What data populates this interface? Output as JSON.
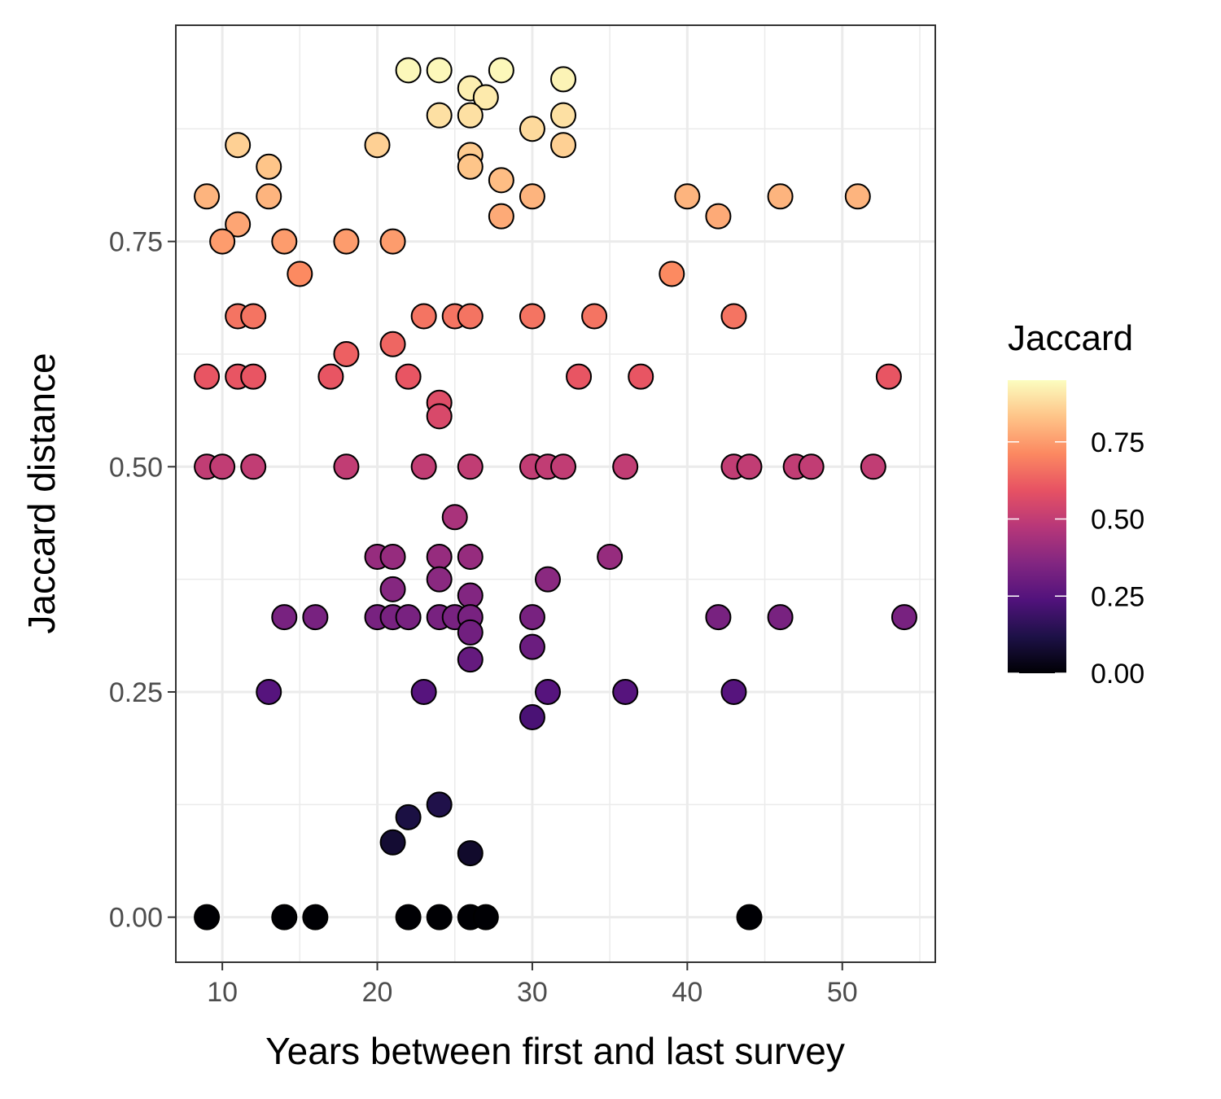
{
  "chart_data": {
    "type": "scatter",
    "xlabel": "Years between first and last survey",
    "ylabel": "Jaccard distance",
    "xlim": [
      7,
      56
    ],
    "ylim": [
      -0.05,
      0.99
    ],
    "x_ticks": [
      10,
      20,
      30,
      40,
      50
    ],
    "x_tick_labels": [
      "10",
      "20",
      "30",
      "40",
      "50"
    ],
    "y_ticks": [
      0,
      0.25,
      0.5,
      0.75
    ],
    "y_tick_labels": [
      "0.00",
      "0.25",
      "0.50",
      "0.75"
    ],
    "grid": true,
    "color_scale": {
      "title": "Jaccard",
      "palette": "magma",
      "range": [
        0,
        0.95
      ],
      "ticks": [
        0,
        0.25,
        0.5,
        0.75
      ],
      "tick_labels": [
        "0.00",
        "0.25",
        "0.50",
        "0.75"
      ],
      "colors": [
        "#000004",
        "#1d1147",
        "#51127c",
        "#822681",
        "#b73779",
        "#e75263",
        "#fc8961",
        "#fec488",
        "#fcfdbf"
      ]
    },
    "legend_position": "right",
    "points": [
      {
        "x": 22,
        "y": 0.94
      },
      {
        "x": 24,
        "y": 0.94
      },
      {
        "x": 28,
        "y": 0.94
      },
      {
        "x": 32,
        "y": 0.93
      },
      {
        "x": 26,
        "y": 0.92
      },
      {
        "x": 27,
        "y": 0.91
      },
      {
        "x": 24,
        "y": 0.89
      },
      {
        "x": 26,
        "y": 0.89
      },
      {
        "x": 32,
        "y": 0.89
      },
      {
        "x": 30,
        "y": 0.875
      },
      {
        "x": 11,
        "y": 0.857
      },
      {
        "x": 20,
        "y": 0.857
      },
      {
        "x": 32,
        "y": 0.857
      },
      {
        "x": 26,
        "y": 0.846
      },
      {
        "x": 26,
        "y": 0.833
      },
      {
        "x": 13,
        "y": 0.833
      },
      {
        "x": 28,
        "y": 0.818
      },
      {
        "x": 9,
        "y": 0.8
      },
      {
        "x": 13,
        "y": 0.8
      },
      {
        "x": 30,
        "y": 0.8
      },
      {
        "x": 40,
        "y": 0.8
      },
      {
        "x": 46,
        "y": 0.8
      },
      {
        "x": 51,
        "y": 0.8
      },
      {
        "x": 28,
        "y": 0.778
      },
      {
        "x": 42,
        "y": 0.778
      },
      {
        "x": 11,
        "y": 0.769
      },
      {
        "x": 10,
        "y": 0.75
      },
      {
        "x": 14,
        "y": 0.75
      },
      {
        "x": 18,
        "y": 0.75
      },
      {
        "x": 21,
        "y": 0.75
      },
      {
        "x": 15,
        "y": 0.714
      },
      {
        "x": 39,
        "y": 0.714
      },
      {
        "x": 11,
        "y": 0.667
      },
      {
        "x": 12,
        "y": 0.667
      },
      {
        "x": 23,
        "y": 0.667
      },
      {
        "x": 25,
        "y": 0.667
      },
      {
        "x": 26,
        "y": 0.667
      },
      {
        "x": 30,
        "y": 0.667
      },
      {
        "x": 34,
        "y": 0.667
      },
      {
        "x": 43,
        "y": 0.667
      },
      {
        "x": 21,
        "y": 0.636
      },
      {
        "x": 18,
        "y": 0.625
      },
      {
        "x": 9,
        "y": 0.6
      },
      {
        "x": 11,
        "y": 0.6
      },
      {
        "x": 12,
        "y": 0.6
      },
      {
        "x": 17,
        "y": 0.6
      },
      {
        "x": 22,
        "y": 0.6
      },
      {
        "x": 33,
        "y": 0.6
      },
      {
        "x": 37,
        "y": 0.6
      },
      {
        "x": 53,
        "y": 0.6
      },
      {
        "x": 24,
        "y": 0.571
      },
      {
        "x": 24,
        "y": 0.556
      },
      {
        "x": 9,
        "y": 0.5
      },
      {
        "x": 10,
        "y": 0.5
      },
      {
        "x": 12,
        "y": 0.5
      },
      {
        "x": 18,
        "y": 0.5
      },
      {
        "x": 23,
        "y": 0.5
      },
      {
        "x": 26,
        "y": 0.5
      },
      {
        "x": 30,
        "y": 0.5
      },
      {
        "x": 31,
        "y": 0.5
      },
      {
        "x": 32,
        "y": 0.5
      },
      {
        "x": 36,
        "y": 0.5
      },
      {
        "x": 43,
        "y": 0.5
      },
      {
        "x": 44,
        "y": 0.5
      },
      {
        "x": 47,
        "y": 0.5
      },
      {
        "x": 48,
        "y": 0.5
      },
      {
        "x": 52,
        "y": 0.5
      },
      {
        "x": 25,
        "y": 0.444
      },
      {
        "x": 20,
        "y": 0.4
      },
      {
        "x": 21,
        "y": 0.4
      },
      {
        "x": 24,
        "y": 0.4
      },
      {
        "x": 26,
        "y": 0.4
      },
      {
        "x": 35,
        "y": 0.4
      },
      {
        "x": 24,
        "y": 0.375
      },
      {
        "x": 31,
        "y": 0.375
      },
      {
        "x": 21,
        "y": 0.364
      },
      {
        "x": 26,
        "y": 0.357
      },
      {
        "x": 14,
        "y": 0.333
      },
      {
        "x": 16,
        "y": 0.333
      },
      {
        "x": 20,
        "y": 0.333
      },
      {
        "x": 21,
        "y": 0.333
      },
      {
        "x": 22,
        "y": 0.333
      },
      {
        "x": 24,
        "y": 0.333
      },
      {
        "x": 25,
        "y": 0.333
      },
      {
        "x": 26,
        "y": 0.333
      },
      {
        "x": 30,
        "y": 0.333
      },
      {
        "x": 42,
        "y": 0.333
      },
      {
        "x": 46,
        "y": 0.333
      },
      {
        "x": 54,
        "y": 0.333
      },
      {
        "x": 26,
        "y": 0.316
      },
      {
        "x": 30,
        "y": 0.3
      },
      {
        "x": 26,
        "y": 0.286
      },
      {
        "x": 13,
        "y": 0.25
      },
      {
        "x": 23,
        "y": 0.25
      },
      {
        "x": 31,
        "y": 0.25
      },
      {
        "x": 36,
        "y": 0.25
      },
      {
        "x": 43,
        "y": 0.25
      },
      {
        "x": 30,
        "y": 0.222
      },
      {
        "x": 24,
        "y": 0.125
      },
      {
        "x": 22,
        "y": 0.111
      },
      {
        "x": 21,
        "y": 0.083
      },
      {
        "x": 26,
        "y": 0.071
      },
      {
        "x": 9,
        "y": 0
      },
      {
        "x": 14,
        "y": 0
      },
      {
        "x": 16,
        "y": 0
      },
      {
        "x": 22,
        "y": 0
      },
      {
        "x": 24,
        "y": 0
      },
      {
        "x": 26,
        "y": 0
      },
      {
        "x": 27,
        "y": 0
      },
      {
        "x": 44,
        "y": 0
      }
    ]
  }
}
